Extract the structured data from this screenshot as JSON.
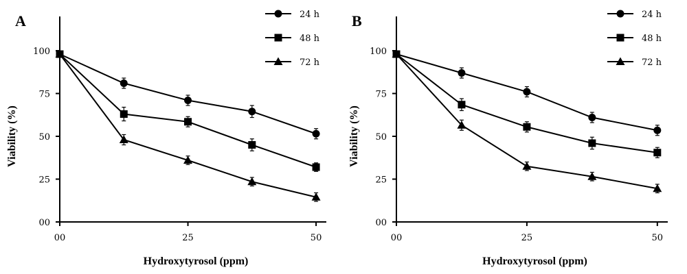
{
  "chart_data": [
    {
      "type": "line",
      "panel": "A",
      "xlabel": "Hydroxytyrosol (ppm)",
      "ylabel": "Viability (%)",
      "xlim": [
        0,
        52
      ],
      "ylim": [
        0,
        120
      ],
      "x_ticks": [
        "00",
        "25",
        "50"
      ],
      "y_ticks": [
        "00",
        "25",
        "50",
        "75",
        "100"
      ],
      "x": [
        0,
        12.5,
        25,
        37.5,
        50
      ],
      "legend_position": "top-right",
      "series": [
        {
          "name": "24 h",
          "marker": "circle",
          "values": [
            98,
            81,
            71,
            64.5,
            51.5
          ],
          "errors": [
            2,
            3,
            3,
            3.5,
            3
          ]
        },
        {
          "name": "48 h",
          "marker": "square",
          "values": [
            98,
            63,
            58.5,
            45,
            32
          ],
          "errors": [
            2,
            4,
            3,
            3.5,
            2.5
          ]
        },
        {
          "name": "72 h",
          "marker": "triangle",
          "values": [
            98,
            48,
            36,
            23.5,
            14.5
          ],
          "errors": [
            2,
            3,
            2.5,
            2.5,
            2.5
          ]
        }
      ]
    },
    {
      "type": "line",
      "panel": "B",
      "xlabel": "Hydroxytyrosol (ppm)",
      "ylabel": "Viability (%)",
      "xlim": [
        0,
        52
      ],
      "ylim": [
        0,
        120
      ],
      "x_ticks": [
        "00",
        "25",
        "50"
      ],
      "y_ticks": [
        "00",
        "25",
        "50",
        "75",
        "100"
      ],
      "x": [
        0,
        12.5,
        25,
        37.5,
        50
      ],
      "legend_position": "top-right",
      "series": [
        {
          "name": "24 h",
          "marker": "circle",
          "values": [
            98,
            87,
            76,
            61,
            53.5
          ],
          "errors": [
            2,
            3,
            3,
            3,
            3
          ]
        },
        {
          "name": "48 h",
          "marker": "square",
          "values": [
            98,
            68.5,
            55.5,
            46,
            40.5
          ],
          "errors": [
            2,
            3.5,
            3,
            3.5,
            3
          ]
        },
        {
          "name": "72 h",
          "marker": "triangle",
          "values": [
            98,
            56.5,
            32.5,
            26.5,
            19.5
          ],
          "errors": [
            2,
            3,
            2.5,
            2.5,
            2.5
          ]
        }
      ]
    }
  ],
  "style": {
    "line_color": "#000000",
    "background": "#ffffff"
  }
}
